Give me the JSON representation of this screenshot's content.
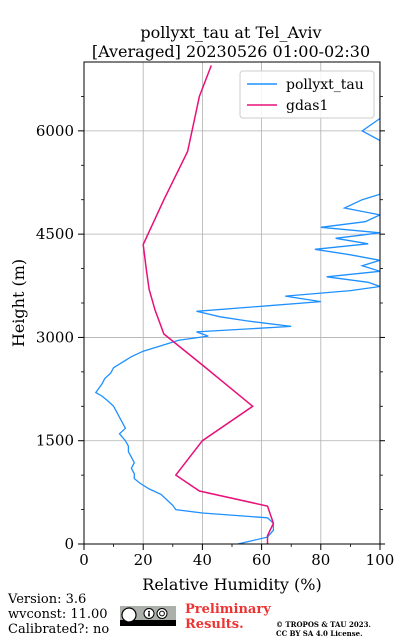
{
  "chart_data": {
    "type": "line",
    "title": "pollyxt_tau at Tel_Aviv",
    "subtitle": "[Averaged] 20230526 01:00-02:30",
    "xlabel": "Relative Humidity (%)",
    "ylabel": "Height (m)",
    "xlim": [
      0,
      100
    ],
    "ylim": [
      0,
      7000
    ],
    "xticks": [
      0,
      20,
      40,
      60,
      80,
      100
    ],
    "yticks": [
      0,
      1500,
      3000,
      4500,
      6000
    ],
    "grid": true,
    "legend_position": "top-right",
    "series": [
      {
        "name": "pollyxt_tau",
        "color": "#1e90ff",
        "points": [
          [
            52,
            0
          ],
          [
            62,
            100
          ],
          [
            64,
            200
          ],
          [
            64,
            300
          ],
          [
            62,
            380
          ],
          [
            40,
            450
          ],
          [
            31,
            500
          ],
          [
            30,
            560
          ],
          [
            28,
            640
          ],
          [
            26,
            720
          ],
          [
            22,
            800
          ],
          [
            19,
            880
          ],
          [
            17,
            950
          ],
          [
            17,
            1020
          ],
          [
            16,
            1100
          ],
          [
            17,
            1180
          ],
          [
            16,
            1260
          ],
          [
            15,
            1340
          ],
          [
            15,
            1420
          ],
          [
            14,
            1500
          ],
          [
            12,
            1600
          ],
          [
            14,
            1680
          ],
          [
            13,
            1760
          ],
          [
            12,
            1840
          ],
          [
            11,
            1920
          ],
          [
            10,
            2000
          ],
          [
            8,
            2080
          ],
          [
            6,
            2150
          ],
          [
            4,
            2200
          ],
          [
            5,
            2260
          ],
          [
            6,
            2320
          ],
          [
            7,
            2400
          ],
          [
            9,
            2480
          ],
          [
            10,
            2560
          ],
          [
            13,
            2640
          ],
          [
            16,
            2720
          ],
          [
            20,
            2800
          ],
          [
            26,
            2880
          ],
          [
            32,
            2960
          ],
          [
            42,
            3020
          ],
          [
            38,
            3080
          ],
          [
            70,
            3160
          ],
          [
            55,
            3240
          ],
          [
            46,
            3300
          ],
          [
            38,
            3380
          ],
          [
            62,
            3460
          ],
          [
            80,
            3520
          ],
          [
            68,
            3600
          ],
          [
            90,
            3680
          ],
          [
            100,
            3740
          ],
          [
            96,
            3800
          ],
          [
            82,
            3880
          ],
          [
            100,
            3960
          ],
          [
            94,
            4040
          ],
          [
            100,
            4120
          ],
          [
            90,
            4200
          ],
          [
            78,
            4280
          ],
          [
            96,
            4360
          ],
          [
            85,
            4440
          ],
          [
            100,
            4520
          ],
          [
            80,
            4600
          ],
          [
            95,
            4680
          ],
          [
            100,
            4780
          ],
          [
            88,
            4880
          ],
          [
            94,
            5000
          ],
          [
            100,
            5080
          ],
          [
            100,
            5240
          ],
          [
            100,
            5400
          ],
          [
            100,
            5560
          ],
          [
            100,
            5700
          ],
          [
            100,
            5860
          ],
          [
            94,
            6000
          ],
          [
            100,
            6180
          ],
          [
            100,
            6330
          ],
          [
            100,
            6480
          ],
          [
            100,
            6620
          ],
          [
            100,
            6740
          ],
          [
            100,
            6880
          ],
          [
            100,
            6960
          ]
        ]
      },
      {
        "name": "gdas1",
        "color": "#e8107a",
        "points": [
          [
            62,
            0
          ],
          [
            62,
            120
          ],
          [
            64,
            300
          ],
          [
            62,
            550
          ],
          [
            39,
            770
          ],
          [
            31,
            1000
          ],
          [
            40,
            1500
          ],
          [
            57,
            2000
          ],
          [
            40,
            2600
          ],
          [
            27,
            3050
          ],
          [
            24,
            3400
          ],
          [
            22,
            3700
          ],
          [
            21,
            4000
          ],
          [
            20,
            4350
          ],
          [
            27,
            5000
          ],
          [
            35,
            5700
          ],
          [
            39,
            6500
          ],
          [
            43,
            6950
          ]
        ]
      }
    ]
  },
  "footer": {
    "version": "Version: 3.6",
    "wvconst": "wvconst:  11.00",
    "calibrated": "Calibrated?: no",
    "preliminary_line1": "Preliminary",
    "preliminary_line2": "Results.",
    "copyright_line1": "© TROPOS & TAU 2023.",
    "copyright_line2": "CC BY SA 4.0 License."
  }
}
